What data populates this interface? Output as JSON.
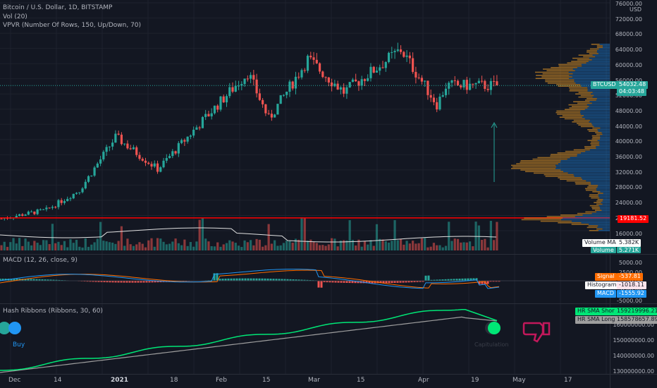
{
  "header": {
    "symbol_title": "Bitcoin / U.S. Dollar, 1D, BITSTAMP",
    "vol_indicator": "Vol (20)",
    "vpvr_indicator": "VPVR (Number Of Rows, 150, Up/Down, 70)",
    "currency": "USD"
  },
  "price_axis": [
    "76000.00",
    "72000.00",
    "68000.00",
    "64000.00",
    "60000.00",
    "56000.00",
    "52000.00",
    "48000.00",
    "44000.00",
    "40000.00",
    "36000.00",
    "32000.00",
    "28000.00",
    "24000.00",
    "20000.00",
    "16000.00"
  ],
  "price_tag": {
    "symbol": "BTCUSD",
    "price": "54032.48",
    "countdown": "04:03:48",
    "color": "#26a69a"
  },
  "level_tag": {
    "value": "19181.52",
    "color": "#ff0000"
  },
  "volume_panel": {
    "ma_label": "Volume MA",
    "ma_value": "5.382K",
    "vol_label": "Volume",
    "vol_value": "5.271K"
  },
  "macd_panel": {
    "title": "MACD (12, 26, close, 9)",
    "axis": [
      "5000.00",
      "2500.00",
      "0.00",
      "-2500.00",
      "-5000.00"
    ],
    "signal_label": "Signal",
    "signal_value": "-537.81",
    "hist_label": "Histogram",
    "hist_value": "-1018.11",
    "macd_label": "MACD",
    "macd_value": "-1555.92",
    "colors": {
      "macd": "#2196f3",
      "signal": "#ff6d00"
    }
  },
  "hash_panel": {
    "title": "Hash Ribbons (Ribbons, 30, 60)",
    "short_label": "HR SMA Short",
    "short_value": "159219996.21",
    "long_label": "HR SMA Long",
    "long_value": "158578657.89",
    "axis": [
      "160000000.00",
      "150000000.00",
      "140000000.00",
      "130000000.00"
    ],
    "buy_label": "Buy",
    "capitulation_label": "Capitulation",
    "colors": {
      "short": "#00e676",
      "long": "#9e9e9e"
    }
  },
  "time_axis": [
    "Dec",
    "14",
    "2021",
    "18",
    "Feb",
    "15",
    "Mar",
    "15",
    "Apr",
    "19",
    "May",
    "17"
  ],
  "chart_data": {
    "type": "candlestick",
    "title": "Bitcoin / U.S. Dollar, 1D, BITSTAMP",
    "ylabel": "USD",
    "ylim": [
      15000,
      76000
    ],
    "x_range": [
      "2020-11-30",
      "2021-05-28"
    ],
    "horizontal_level": 19181.52,
    "last_price": 54032.48,
    "approx_close_path": [
      {
        "date": "2020-12-01",
        "close": 19000
      },
      {
        "date": "2020-12-16",
        "close": 21300
      },
      {
        "date": "2020-12-27",
        "close": 26500
      },
      {
        "date": "2021-01-08",
        "close": 40500
      },
      {
        "date": "2021-01-22",
        "close": 32000
      },
      {
        "date": "2021-02-08",
        "close": 46500
      },
      {
        "date": "2021-02-21",
        "close": 57500
      },
      {
        "date": "2021-02-28",
        "close": 45200
      },
      {
        "date": "2021-03-13",
        "close": 61000
      },
      {
        "date": "2021-03-25",
        "close": 52300
      },
      {
        "date": "2021-04-13",
        "close": 63500
      },
      {
        "date": "2021-04-25",
        "close": 49000
      },
      {
        "date": "2021-04-28",
        "close": 54032
      }
    ]
  }
}
